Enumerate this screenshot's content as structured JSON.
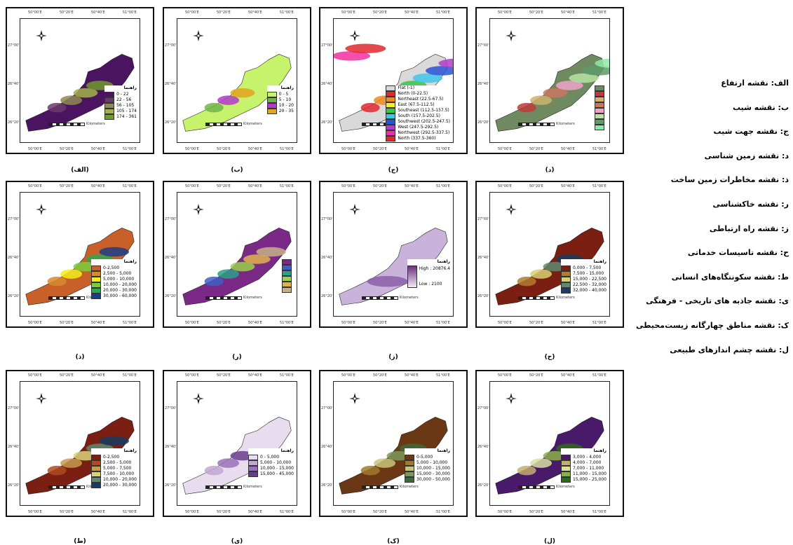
{
  "tick_labels": {
    "top": [
      "50°00'E",
      "50°20'E",
      "50°40'E",
      "51°00'E"
    ],
    "left": [
      "27°00'N",
      "26°40'N",
      "26°20'N"
    ]
  },
  "scale_units": "Kilometers",
  "legend_title": "راهنما",
  "panels": [
    {
      "id": "alef",
      "caption": "(الف)",
      "legend": {
        "title": "راهنما",
        "items": [
          {
            "label": "0 - 22",
            "color": "#4b1460"
          },
          {
            "label": "22 - 56",
            "color": "#6a3a6a"
          },
          {
            "label": "56 - 105",
            "color": "#8f8a55"
          },
          {
            "label": "105 - 174",
            "color": "#a3b24a"
          },
          {
            "label": "174 - 361",
            "color": "#6e9a2e"
          }
        ]
      }
    },
    {
      "id": "be",
      "caption": "(ب)",
      "legend": {
        "title": "راهنما",
        "items": [
          {
            "label": "0 - 5",
            "color": "#c7f26b"
          },
          {
            "label": "5 - 10",
            "color": "#6fb546"
          },
          {
            "label": "10 - 20",
            "color": "#b03bc9"
          },
          {
            "label": "20 - 35",
            "color": "#e2a51e"
          }
        ]
      }
    },
    {
      "id": "jim",
      "caption": "(ج)",
      "legend": {
        "title": "",
        "items": [
          {
            "label": "Flat (-1)",
            "color": "#d9d9d9"
          },
          {
            "label": "North (0-22.5)",
            "color": "#e0282e"
          },
          {
            "label": "Northeast (22.5-67.5)",
            "color": "#f08a1c"
          },
          {
            "label": "East (67.5-112.5)",
            "color": "#f4ec2a"
          },
          {
            "label": "Southeast (112.5-157.5)",
            "color": "#39c44a"
          },
          {
            "label": "South (157.5-202.5)",
            "color": "#3dc6e8"
          },
          {
            "label": "Southwest (202.5-247.5)",
            "color": "#2a54d6"
          },
          {
            "label": "West (247.5-292.5)",
            "color": "#b23cc8"
          },
          {
            "label": "Northwest (292.5-337.5)",
            "color": "#f030a0"
          },
          {
            "label": "North (337.5-360)",
            "color": "#e0282e"
          }
        ]
      }
    },
    {
      "id": "dal",
      "caption": "(د)",
      "legend": {
        "title": "",
        "items": [
          {
            "label": "",
            "color": "#6f8a60"
          },
          {
            "label": "",
            "color": "#c0393b"
          },
          {
            "label": "",
            "color": "#d0b26d"
          },
          {
            "label": "",
            "color": "#c9765f"
          },
          {
            "label": "",
            "color": "#f1a2c9"
          },
          {
            "label": "",
            "color": "#b6e3a2"
          },
          {
            "label": "",
            "color": "#5e9a6a"
          },
          {
            "label": "",
            "color": "#91e7a8"
          }
        ]
      }
    },
    {
      "id": "zal",
      "caption": "(ذ)",
      "legend": {
        "title": "راهنما",
        "items": [
          {
            "label": "0-2,500",
            "color": "#c8602a"
          },
          {
            "label": "2,500 - 5,000",
            "color": "#d9892b"
          },
          {
            "label": "5,000 - 10,000",
            "color": "#f3ee1a"
          },
          {
            "label": "10,000 - 20,000",
            "color": "#7bcf3a"
          },
          {
            "label": "20,000 - 30,000",
            "color": "#2aa84e"
          },
          {
            "label": "30,000 - 60,000",
            "color": "#1c3e86"
          }
        ]
      }
    },
    {
      "id": "re",
      "caption": "(ر)",
      "legend": {
        "title": "",
        "items": [
          {
            "label": "",
            "color": "#7a2a86"
          },
          {
            "label": "",
            "color": "#3e5fc6"
          },
          {
            "label": "",
            "color": "#2aa086"
          },
          {
            "label": "",
            "color": "#9ad04a"
          },
          {
            "label": "",
            "color": "#e0b04c"
          },
          {
            "label": "",
            "color": "#c5b08a"
          }
        ]
      }
    },
    {
      "id": "ze",
      "caption": "(ز)",
      "legend": {
        "title": "راهنما",
        "high": "High : 20876.4",
        "low": "Low : 2100"
      }
    },
    {
      "id": "he",
      "caption": "(ح)",
      "legend": {
        "title": "راهنما",
        "items": [
          {
            "label": "0,000 - 7,500",
            "color": "#7a1f12"
          },
          {
            "label": "7,500 - 15,000",
            "color": "#b07d2e"
          },
          {
            "label": "15,000 - 22,500",
            "color": "#d8d070"
          },
          {
            "label": "22,500 - 32,000",
            "color": "#5f8a70"
          },
          {
            "label": "32,000 - 40,000",
            "color": "#1a3b63"
          }
        ]
      }
    },
    {
      "id": "ta",
      "caption": "(ط)",
      "legend": {
        "title": "راهنما",
        "items": [
          {
            "label": "0-2,500",
            "color": "#7a1f12"
          },
          {
            "label": "2,500 - 5,000",
            "color": "#b04a22"
          },
          {
            "label": "5,000 - 7,500",
            "color": "#c79a50"
          },
          {
            "label": "7,500 - 10,000",
            "color": "#d8d27a"
          },
          {
            "label": "10,000 - 20,000",
            "color": "#5f8a70"
          },
          {
            "label": "20,000 - 30,000",
            "color": "#1a3b63"
          }
        ]
      }
    },
    {
      "id": "ya",
      "caption": "(ی)",
      "legend": {
        "title": "راهنما",
        "items": [
          {
            "label": "0 - 5,000",
            "color": "#e8dcef"
          },
          {
            "label": "5,000 - 10,000",
            "color": "#c2a7d4"
          },
          {
            "label": "10,000 - 15,000",
            "color": "#9a72b8"
          },
          {
            "label": "15,000 - 45,000",
            "color": "#6a3e8f"
          }
        ]
      }
    },
    {
      "id": "kaf",
      "caption": "(ک)",
      "legend": {
        "title": "راهنما",
        "items": [
          {
            "label": "0-5,000",
            "color": "#6a3814"
          },
          {
            "label": "5,000 - 10,000",
            "color": "#a07a30"
          },
          {
            "label": "10,000 - 15,000",
            "color": "#c9c47a"
          },
          {
            "label": "15,000 - 30,000",
            "color": "#7b9a5a"
          },
          {
            "label": "30,000 - 50,000",
            "color": "#3e6a3a"
          }
        ]
      }
    },
    {
      "id": "lam",
      "caption": "(ل)",
      "legend": {
        "title": "راهنما",
        "items": [
          {
            "label": "3,000 - 4,000",
            "color": "#4a1a6a"
          },
          {
            "label": "4,000 - 7,000",
            "color": "#c0b070"
          },
          {
            "label": "7,000 - 11,000",
            "color": "#d8e0a0"
          },
          {
            "label": "11,000 - 15,000",
            "color": "#8ab048"
          },
          {
            "label": "15,000 - 25,000",
            "color": "#2e6a1e"
          }
        ]
      }
    }
  ],
  "side_list": [
    "الف: نقشه ارتفاع",
    "ب: نقشه شیب",
    "ج: نقشه جهت شیب",
    "د: نقشه زمین شناسی",
    "ذ: نقشه مخاطرات زمین ساخت",
    "ر: نقشه خاکشناسی",
    "ز: نقشه راه ارتباطی",
    "ح: نقشه تاسیسات خدماتی",
    "ط: نقشه سکونتگاه‌های انسانی",
    "ی: نقشه جاذبه های تاریخی - فرهنگی",
    "ک: نقشه مناطق چهارگانه زیست‌محیطی",
    "ل: نقشه چشم اندازهای طبیعی"
  ]
}
